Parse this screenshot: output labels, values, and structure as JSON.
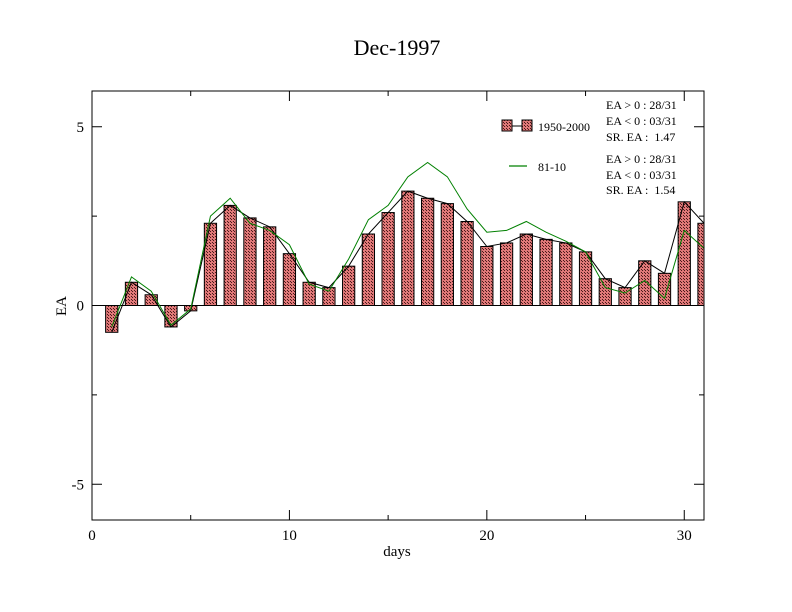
{
  "chart_data": {
    "type": "bar",
    "title": "Dec-1997",
    "xlabel": "days",
    "ylabel": "EA",
    "xlim": [
      0,
      31
    ],
    "ylim": [
      -6,
      6
    ],
    "x_ticks": [
      0,
      10,
      20,
      30
    ],
    "y_ticks": [
      -5,
      0,
      5
    ],
    "grid": false,
    "legend_position": "top-right",
    "series": [
      {
        "name": "1950-2000",
        "kind": "bar+line",
        "bar_fill": "#e07878",
        "bar_hatch": "#4a1a1a",
        "line_color": "#000000",
        "x": [
          1,
          2,
          3,
          4,
          5,
          6,
          7,
          8,
          9,
          10,
          11,
          12,
          13,
          14,
          15,
          16,
          17,
          18,
          19,
          20,
          21,
          22,
          23,
          24,
          25,
          26,
          27,
          28,
          29,
          30,
          31
        ],
        "values": [
          -0.75,
          0.65,
          0.3,
          -0.6,
          -0.15,
          2.3,
          2.8,
          2.45,
          2.2,
          1.45,
          0.65,
          0.5,
          1.1,
          2.0,
          2.6,
          3.2,
          3.0,
          2.85,
          2.35,
          1.65,
          1.75,
          2.0,
          1.85,
          1.75,
          1.5,
          0.75,
          0.5,
          1.25,
          0.9,
          2.9,
          2.3
        ],
        "legend_stats": [
          "EA > 0 : 28/31",
          "EA < 0 : 03/31",
          "SR. EA :  1.47"
        ]
      },
      {
        "name": "81-10",
        "kind": "line",
        "line_color": "#008000",
        "x": [
          1,
          2,
          3,
          4,
          5,
          6,
          7,
          8,
          9,
          10,
          11,
          12,
          13,
          14,
          15,
          16,
          17,
          18,
          19,
          20,
          21,
          22,
          23,
          24,
          25,
          26,
          27,
          28,
          29,
          30,
          31
        ],
        "values": [
          -0.6,
          0.8,
          0.4,
          -0.55,
          -0.1,
          2.5,
          3.0,
          2.3,
          2.1,
          1.7,
          0.6,
          0.4,
          1.3,
          2.4,
          2.8,
          3.6,
          4.0,
          3.6,
          2.7,
          2.05,
          2.1,
          2.35,
          2.05,
          1.8,
          1.5,
          0.5,
          0.35,
          0.7,
          0.2,
          2.1,
          1.6
        ],
        "legend_stats": [
          "EA > 0 : 28/31",
          "EA < 0 : 03/31",
          "SR. EA :  1.54"
        ]
      }
    ]
  }
}
